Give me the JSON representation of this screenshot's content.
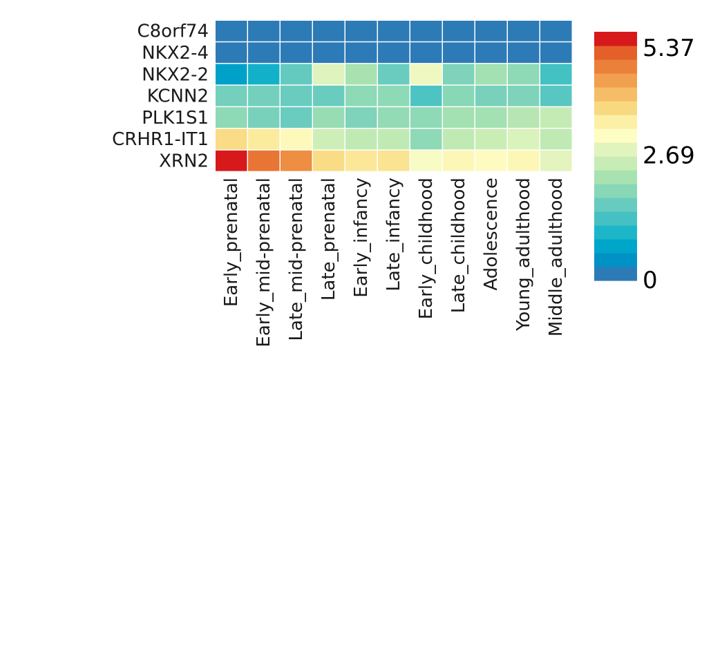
{
  "chart_data": {
    "type": "heatmap",
    "rows": [
      "C8orf74",
      "NKX2-4",
      "NKX2-2",
      "KCNN2",
      "PLK1S1",
      "CRHR1-IT1",
      "XRN2"
    ],
    "columns": [
      "Early_prenatal",
      "Early_mid-prenatal",
      "Late_mid-prenatal",
      "Late_prenatal",
      "Early_infancy",
      "Late_infancy",
      "Early_childhood",
      "Late_childhood",
      "Adolescence",
      "Young_adulthood",
      "Middle_adulthood"
    ],
    "values": [
      [
        0,
        0,
        0,
        0,
        0,
        0,
        0,
        0,
        0,
        0,
        0
      ],
      [
        0,
        0,
        0,
        0,
        0,
        0,
        0,
        0,
        0,
        0,
        0
      ],
      [
        0.55,
        0.85,
        1.55,
        2.8,
        2.2,
        1.6,
        3.0,
        1.8,
        2.15,
        1.95,
        1.25
      ],
      [
        1.7,
        1.7,
        1.6,
        1.6,
        1.95,
        1.95,
        1.35,
        1.9,
        1.75,
        1.8,
        1.45
      ],
      [
        1.95,
        1.75,
        1.6,
        2.05,
        1.8,
        2.0,
        1.95,
        2.15,
        2.15,
        2.35,
        2.5
      ],
      [
        3.75,
        3.55,
        3.25,
        2.6,
        2.45,
        2.45,
        1.95,
        2.45,
        2.55,
        2.75,
        2.45
      ],
      [
        5.37,
        4.85,
        4.6,
        3.75,
        3.6,
        3.65,
        3.1,
        3.3,
        3.2,
        3.3,
        2.85
      ]
    ],
    "colorbar": {
      "ticks": [
        "5.37",
        "2.69",
        "0"
      ],
      "min": 0,
      "max": 5.37,
      "colors": [
        "#2c7bb6",
        "#0092c4",
        "#00a6ca",
        "#1cb6c8",
        "#45c1c3",
        "#67cbc0",
        "#88d7b7",
        "#a9e2b1",
        "#c8ecb5",
        "#e2f4be",
        "#fdfdc4",
        "#fcf0a6",
        "#f9d980",
        "#f5bd67",
        "#f0a04e",
        "#eb803b",
        "#e46029",
        "#d7191c"
      ]
    }
  }
}
